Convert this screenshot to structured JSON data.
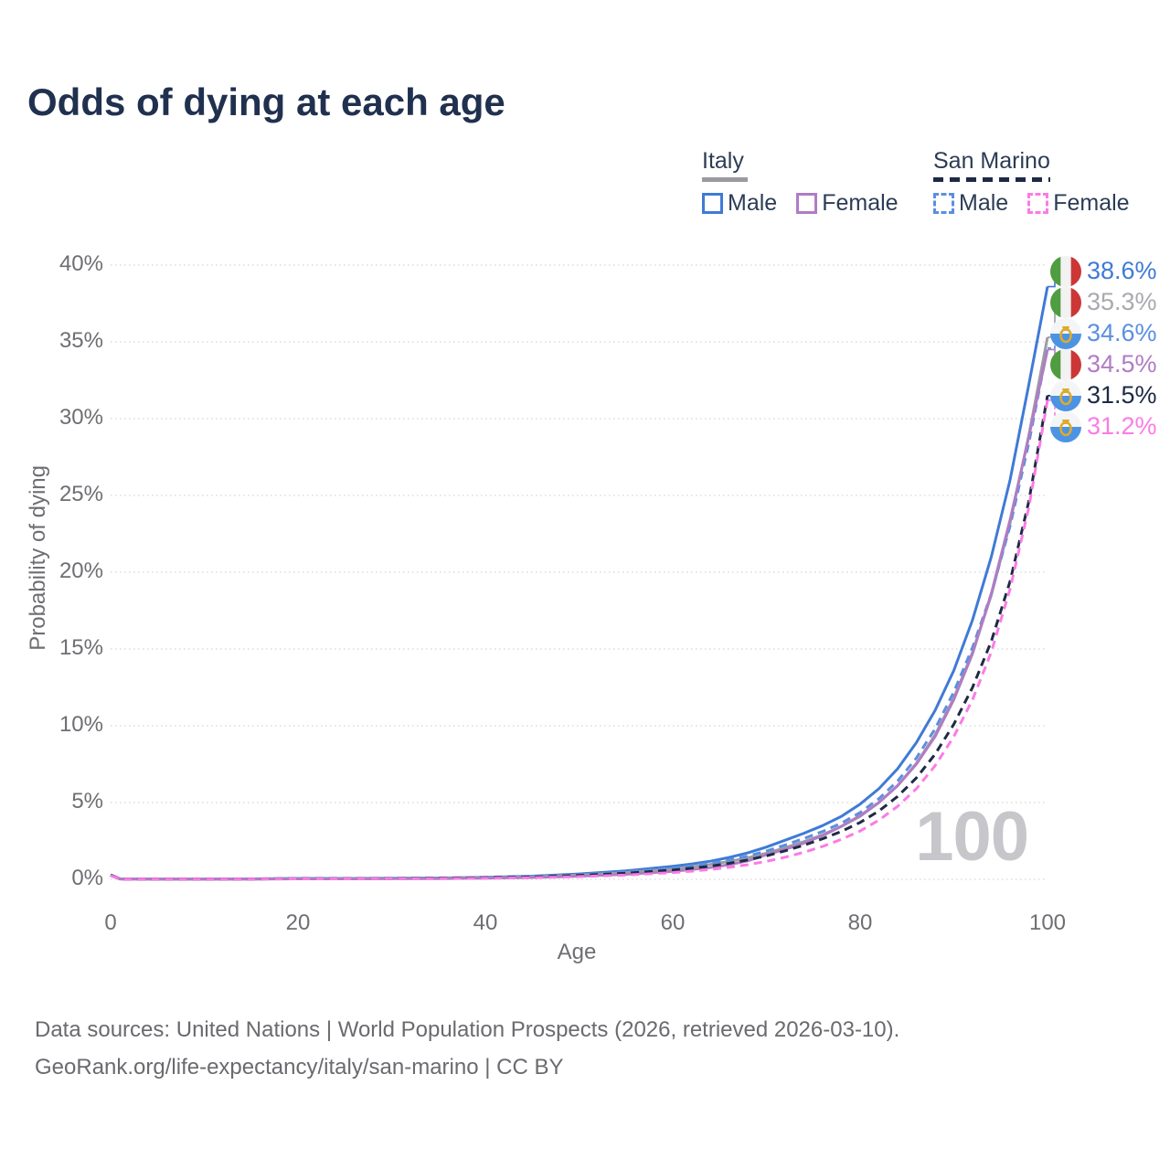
{
  "title": "Odds of dying at each age",
  "watermark": "100",
  "legend": {
    "groups": [
      {
        "label": "Italy",
        "line_style": "solid",
        "underline_color": "#9a9aa0",
        "items": [
          {
            "label": "Male",
            "color": "#3f7ad6"
          },
          {
            "label": "Female",
            "color": "#b07cc4"
          }
        ]
      },
      {
        "label": "San Marino",
        "line_style": "dashed",
        "underline_color": "#1e2a44",
        "items": [
          {
            "label": "Male",
            "color": "#5b8fe0"
          },
          {
            "label": "Female",
            "color": "#fb7be5"
          }
        ]
      }
    ]
  },
  "axes": {
    "x_label": "Age",
    "y_label": "Probability of dying",
    "x_ticks": [
      0,
      20,
      40,
      60,
      80,
      100
    ],
    "y_ticks": [
      0,
      5,
      10,
      15,
      20,
      25,
      30,
      35,
      40
    ],
    "y_tick_suffix": "%",
    "xlim": [
      0,
      100
    ],
    "ylim": [
      0,
      40
    ],
    "grid": "horizontal-dotted"
  },
  "footer": {
    "line1": "Data sources: United Nations | World Population Prospects (2026, retrieved 2026-03-10).",
    "line2": "GeoRank.org/life-expectancy/italy/san-marino | CC BY"
  },
  "chart_data": {
    "type": "line",
    "title": "Odds of dying at each age",
    "xlabel": "Age",
    "ylabel": "Probability of dying",
    "xlim": [
      0,
      100
    ],
    "ylim": [
      0,
      40
    ],
    "legend_position": "top-right",
    "x": [
      0,
      1,
      5,
      10,
      15,
      20,
      25,
      30,
      35,
      40,
      45,
      50,
      55,
      60,
      62,
      64,
      66,
      68,
      70,
      72,
      74,
      76,
      78,
      80,
      82,
      84,
      86,
      88,
      90,
      92,
      94,
      96,
      98,
      100
    ],
    "series": [
      {
        "name": "Italy Male",
        "country": "italy",
        "sex": "male",
        "color": "#3f7ad6",
        "dashed": false,
        "end_label": "38.6%",
        "end_value": 38.6,
        "label_color": "#3f7ad6",
        "values": [
          0.3,
          0.03,
          0.01,
          0.01,
          0.03,
          0.06,
          0.06,
          0.07,
          0.09,
          0.13,
          0.21,
          0.35,
          0.55,
          0.85,
          1.0,
          1.18,
          1.42,
          1.72,
          2.1,
          2.55,
          3.0,
          3.5,
          4.1,
          4.9,
          5.9,
          7.2,
          8.9,
          11.0,
          13.6,
          16.9,
          21.0,
          26.0,
          32.2,
          38.6
        ]
      },
      {
        "name": "Italy Both sexes",
        "country": "italy",
        "sex": "both",
        "color": "#9c9ca2",
        "dashed": false,
        "end_label": "35.3%",
        "end_value": 35.3,
        "label_color": "#a9a9af",
        "values": [
          0.29,
          0.03,
          0.01,
          0.01,
          0.02,
          0.05,
          0.05,
          0.06,
          0.08,
          0.11,
          0.17,
          0.28,
          0.44,
          0.68,
          0.81,
          0.97,
          1.16,
          1.4,
          1.7,
          2.06,
          2.45,
          2.9,
          3.45,
          4.1,
          5.0,
          6.1,
          7.55,
          9.4,
          11.8,
          14.8,
          18.5,
          23.2,
          28.9,
          35.3
        ]
      },
      {
        "name": "San Marino Male",
        "country": "san-marino",
        "sex": "male",
        "color": "#5b8fe0",
        "dashed": true,
        "end_label": "34.6%",
        "end_value": 34.6,
        "label_color": "#5b8fe0",
        "values": [
          0.28,
          0.03,
          0.01,
          0.01,
          0.03,
          0.05,
          0.05,
          0.06,
          0.08,
          0.12,
          0.18,
          0.3,
          0.48,
          0.74,
          0.88,
          1.05,
          1.26,
          1.52,
          1.84,
          2.24,
          2.66,
          3.12,
          3.66,
          4.35,
          5.25,
          6.4,
          7.9,
          9.8,
          12.2,
          15.1,
          18.6,
          23.0,
          28.4,
          34.6
        ]
      },
      {
        "name": "Italy Female",
        "country": "italy",
        "sex": "female",
        "color": "#b07cc4",
        "dashed": false,
        "end_label": "34.5%",
        "end_value": 34.5,
        "label_color": "#b07cc4",
        "values": [
          0.27,
          0.02,
          0.01,
          0.01,
          0.02,
          0.03,
          0.03,
          0.04,
          0.05,
          0.08,
          0.12,
          0.2,
          0.33,
          0.52,
          0.63,
          0.77,
          0.95,
          1.2,
          1.6,
          1.95,
          2.36,
          2.85,
          3.45,
          4.15,
          5.0,
          6.1,
          7.5,
          9.3,
          11.7,
          14.7,
          18.6,
          23.4,
          28.8,
          34.5
        ]
      },
      {
        "name": "San Marino Both sexes",
        "country": "san-marino",
        "sex": "both",
        "color": "#1e2a44",
        "dashed": true,
        "end_label": "31.5%",
        "end_value": 31.5,
        "label_color": "#1e2a44",
        "values": [
          0.26,
          0.02,
          0.01,
          0.01,
          0.02,
          0.04,
          0.04,
          0.05,
          0.07,
          0.1,
          0.15,
          0.25,
          0.4,
          0.6,
          0.72,
          0.86,
          1.04,
          1.26,
          1.53,
          1.86,
          2.22,
          2.64,
          3.12,
          3.7,
          4.45,
          5.4,
          6.6,
          8.15,
          10.1,
          12.5,
          15.5,
          19.4,
          24.6,
          31.5
        ]
      },
      {
        "name": "San Marino Female",
        "country": "san-marino",
        "sex": "female",
        "color": "#fb7be5",
        "dashed": true,
        "end_label": "31.2%",
        "end_value": 31.2,
        "label_color": "#fb7be5",
        "values": [
          0.24,
          0.02,
          0.01,
          0.01,
          0.02,
          0.03,
          0.03,
          0.04,
          0.05,
          0.07,
          0.11,
          0.18,
          0.28,
          0.44,
          0.53,
          0.64,
          0.78,
          0.95,
          1.17,
          1.44,
          1.76,
          2.14,
          2.6,
          3.15,
          3.85,
          4.75,
          5.9,
          7.4,
          9.3,
          11.7,
          14.8,
          18.9,
          24.2,
          31.2
        ]
      }
    ],
    "flags": {
      "italy": {
        "type": "vertical-tricolor",
        "colors": [
          "#4f9c41",
          "#f2f2f2",
          "#cc3636"
        ]
      },
      "san-marino": {
        "type": "bicolor-crest",
        "colors": [
          "#f4f5f7",
          "#4d93e3"
        ],
        "crest_color": "#dcab2e"
      }
    }
  }
}
